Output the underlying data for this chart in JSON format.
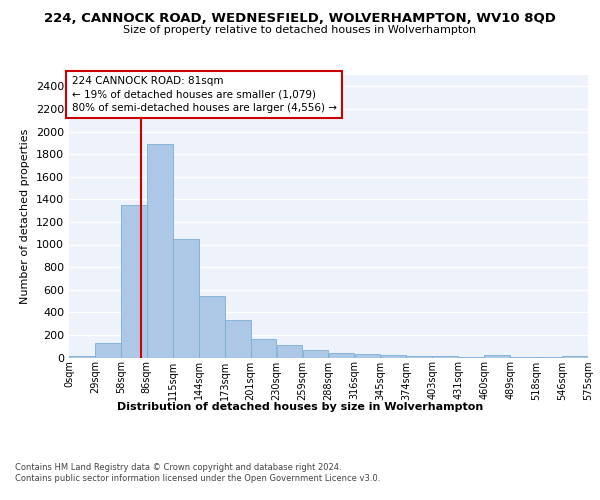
{
  "title": "224, CANNOCK ROAD, WEDNESFIELD, WOLVERHAMPTON, WV10 8QD",
  "subtitle": "Size of property relative to detached houses in Wolverhampton",
  "xlabel": "Distribution of detached houses by size in Wolverhampton",
  "ylabel": "Number of detached properties",
  "bar_color": "#adc8e6",
  "bar_edge_color": "#7aafd4",
  "background_color": "#eef2fb",
  "grid_color": "#ffffff",
  "annotation_text_line1": "224 CANNOCK ROAD: 81sqm",
  "annotation_text_line2": "← 19% of detached houses are smaller (1,079)",
  "annotation_text_line3": "80% of semi-detached houses are larger (4,556) →",
  "property_line_x": 81,
  "property_line_color": "#cc0000",
  "bin_edges": [
    0,
    29,
    58,
    87,
    116,
    145,
    174,
    203,
    232,
    261,
    290,
    319,
    348,
    377,
    406,
    435,
    464,
    493,
    522,
    551,
    580
  ],
  "bin_labels": [
    "0sqm",
    "29sqm",
    "58sqm",
    "86sqm",
    "115sqm",
    "144sqm",
    "173sqm",
    "201sqm",
    "230sqm",
    "259sqm",
    "288sqm",
    "316sqm",
    "345sqm",
    "374sqm",
    "403sqm",
    "431sqm",
    "460sqm",
    "489sqm",
    "518sqm",
    "546sqm",
    "575sqm"
  ],
  "bar_heights": [
    10,
    125,
    1350,
    1890,
    1045,
    540,
    335,
    165,
    110,
    62,
    38,
    28,
    20,
    15,
    10,
    8,
    20,
    5,
    5,
    12
  ],
  "ylim": [
    0,
    2500
  ],
  "yticks": [
    0,
    200,
    400,
    600,
    800,
    1000,
    1200,
    1400,
    1600,
    1800,
    2000,
    2200,
    2400
  ],
  "footer_line1": "Contains HM Land Registry data © Crown copyright and database right 2024.",
  "footer_line2": "Contains public sector information licensed under the Open Government Licence v3.0."
}
